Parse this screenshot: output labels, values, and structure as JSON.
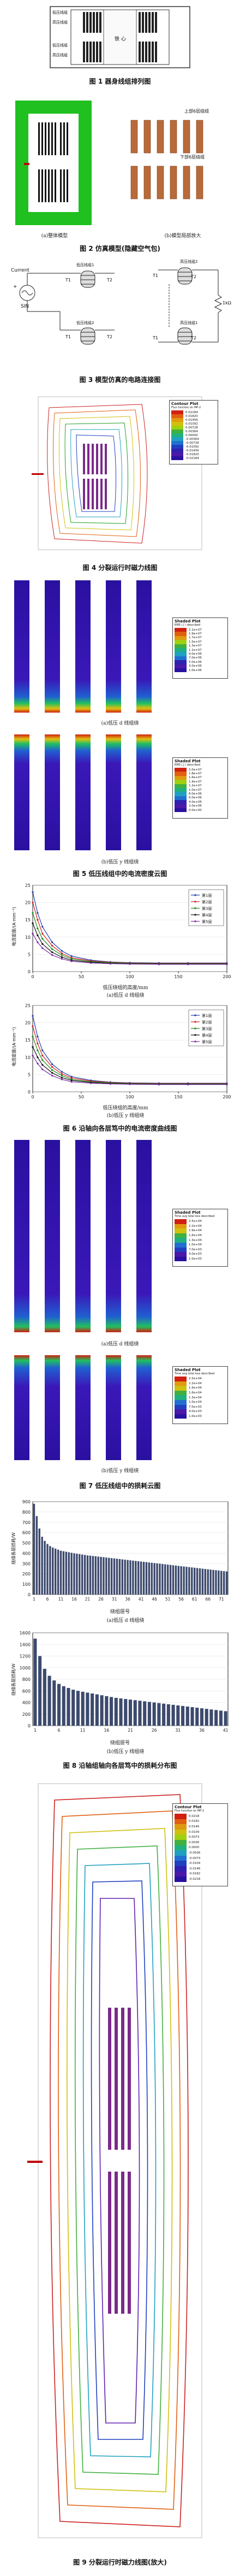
{
  "fig1": {
    "caption": "图 1  器身线组排列图",
    "core_label": "铁 心",
    "labels": [
      "低压线组",
      "高压线组",
      "低压线组",
      "高压线组"
    ]
  },
  "fig2": {
    "caption": "图 2  仿真模型(隐藏空气包)",
    "sub_a": "(a)整体模型",
    "sub_b": "(b)模型局部放大",
    "top_label": "上部6层绕组",
    "bottom_label": "下部6层绕组"
  },
  "fig3": {
    "caption": "图 3  模型仿真的电路连接图",
    "left": {
      "current": "Current",
      "sin": "SIN",
      "t1": "T1",
      "t2": "T2",
      "lv1": "低压线组1",
      "lv2": "低压线组2",
      "plus": "+"
    },
    "right": {
      "hv1": "高压线组1",
      "hv2": "高压线组2",
      "t1": "T1",
      "t2": "T2",
      "r": "1kΩ"
    }
  },
  "fig4": {
    "caption": "图 4  分裂运行时磁力线图",
    "legend_title": "Contour Plot",
    "legend_sub": "Flux function on MP-2",
    "levels": [
      "0.02184",
      "0.01820",
      "0.01456",
      "0.01092",
      "0.00728",
      "0.00364",
      "0.00000",
      "-0.00364",
      "-0.00728",
      "-0.01092",
      "-0.01456",
      "-0.01820",
      "-0.02184"
    ]
  },
  "fig5": {
    "caption": "图 5  低压线组中的电流密度云图",
    "sub_a": "(a)低压 d 线组绕",
    "sub_b": "(b)低压 y 线组绕",
    "legend_a_title": "Shaded Plot",
    "legend_a_sub": "RMS ( J ) described",
    "legend_b_title": "Shaded Plot",
    "legend_b_sub": "RMS ( J ) described",
    "levels_a": [
      "2.1e+07",
      "1.9e+07",
      "1.7e+07",
      "1.5e+07",
      "1.3e+07",
      "1.1e+07",
      "9.0e+06",
      "7.0e+06",
      "5.0e+06",
      "3.0e+06",
      "1.0e+06"
    ],
    "levels_b": [
      "2.0e+07",
      "1.8e+07",
      "1.6e+07",
      "1.4e+07",
      "1.2e+07",
      "1.0e+07",
      "8.0e+06",
      "6.0e+06",
      "4.0e+06",
      "2.0e+06",
      "0.0e+00"
    ]
  },
  "fig6": {
    "caption": "图 6  沿轴向各层笃中的电流密度曲线图",
    "sub_a": "(a)低压 d 线组绕",
    "sub_b": "(b)低压 y 线组绕",
    "xlabel": "低压绕组的高度/mm",
    "ylabel": "电流密度/(A·mm⁻²)",
    "ylabel_b": "电流密度/(A·mm⁻²)"
  },
  "fig7": {
    "caption": "图 7  低压线组中的损耗云图",
    "sub_a": "(a)低压 d 线组绕",
    "sub_b": "(b)低压 y 线组绕",
    "legend_a_title": "Shaded Plot",
    "legend_a_sub": "Time avg total loss described",
    "legend_b_title": "Shaded Plot",
    "legend_b_sub": "Time avg total loss described",
    "levels": [
      "2.5e+04",
      "2.2e+04",
      "1.9e+04",
      "1.6e+04",
      "1.3e+04",
      "1.0e+04",
      "7.0e+03",
      "4.0e+03",
      "1.0e+03"
    ]
  },
  "fig8": {
    "caption": "图 8  沿轴组轴向各层笃中的损耗分布图",
    "sub_a": "(a)低压 d 线组绕",
    "sub_b": "(b)低压 y 线组绕",
    "xlabel": "绕组层号",
    "ylabel": "绕组各层损耗/W",
    "ylabel_b": "绕组各层损耗/W"
  },
  "fig9": {
    "caption": "图 9  分裂运行时磁力线图(放大)",
    "legend_title": "Contour Plot",
    "legend_sub": "Flux function on MP-2",
    "levels": [
      "0.0218",
      "0.0182",
      "0.0146",
      "0.0109",
      "0.0073",
      "0.0036",
      "0.0000",
      "-0.0036",
      "-0.0073",
      "-0.0109",
      "-0.0146",
      "-0.0182",
      "-0.0218"
    ]
  },
  "chart_data": [
    {
      "type": "line",
      "title": "",
      "xlabel": "低压绕组的高度/mm",
      "ylabel": "电流密度/(A·mm⁻²)",
      "xlim": [
        0,
        200
      ],
      "ylim": [
        0,
        25
      ],
      "xticks": [
        0,
        50,
        100,
        150,
        200
      ],
      "yticks": [
        0,
        5,
        10,
        15,
        20,
        25
      ],
      "legend": "top-right",
      "series": [
        {
          "name": "第1层",
          "color": "#1f3fb0",
          "x": [
            0,
            5,
            10,
            20,
            30,
            40,
            60,
            80,
            100,
            130,
            160,
            200
          ],
          "y": [
            23,
            17,
            13,
            8.5,
            6,
            4.5,
            3.3,
            2.8,
            2.6,
            2.5,
            2.5,
            2.5
          ]
        },
        {
          "name": "第2层",
          "color": "#d42020",
          "x": [
            0,
            5,
            10,
            20,
            30,
            40,
            60,
            80,
            100,
            130,
            160,
            200
          ],
          "y": [
            20,
            15,
            11,
            7.5,
            5.3,
            4,
            3.1,
            2.7,
            2.5,
            2.4,
            2.4,
            2.4
          ]
        },
        {
          "name": "第3层",
          "color": "#1a8a1a",
          "x": [
            0,
            5,
            10,
            20,
            30,
            40,
            60,
            80,
            100,
            130,
            160,
            200
          ],
          "y": [
            17,
            12.5,
            9.5,
            6.5,
            4.8,
            3.7,
            2.9,
            2.6,
            2.4,
            2.3,
            2.3,
            2.3
          ]
        },
        {
          "name": "第4层",
          "color": "#111111",
          "x": [
            0,
            5,
            10,
            20,
            30,
            40,
            60,
            80,
            100,
            130,
            160,
            200
          ],
          "y": [
            14,
            10.5,
            8,
            5.6,
            4.2,
            3.3,
            2.7,
            2.4,
            2.3,
            2.2,
            2.2,
            2.2
          ]
        },
        {
          "name": "第5层",
          "color": "#7a2aa0",
          "x": [
            0,
            5,
            10,
            20,
            30,
            40,
            60,
            80,
            100,
            130,
            160,
            200
          ],
          "y": [
            11,
            8.5,
            6.8,
            4.8,
            3.7,
            3,
            2.5,
            2.3,
            2.2,
            2.1,
            2.1,
            2.1
          ]
        }
      ]
    },
    {
      "type": "line",
      "title": "",
      "xlabel": "低压绕组的高度/mm",
      "ylabel": "电流密度/(A·mm⁻²)",
      "xlim": [
        0,
        200
      ],
      "ylim": [
        0,
        25
      ],
      "xticks": [
        0,
        50,
        100,
        150,
        200
      ],
      "yticks": [
        0,
        5,
        10,
        15,
        20,
        25
      ],
      "legend": "top-right",
      "series": [
        {
          "name": "第1层",
          "color": "#1f3fb0",
          "x": [
            0,
            5,
            10,
            20,
            30,
            40,
            60,
            80,
            100,
            130,
            160,
            200
          ],
          "y": [
            22,
            16,
            12,
            8,
            5.8,
            4.4,
            3.3,
            2.8,
            2.6,
            2.5,
            2.5,
            2.5
          ]
        },
        {
          "name": "第2层",
          "color": "#d42020",
          "x": [
            0,
            5,
            10,
            20,
            30,
            40,
            60,
            80,
            100,
            130,
            160,
            200
          ],
          "y": [
            19,
            14,
            10.5,
            7.2,
            5.2,
            4,
            3.1,
            2.7,
            2.5,
            2.4,
            2.4,
            2.4
          ]
        },
        {
          "name": "第3层",
          "color": "#1a8a1a",
          "x": [
            0,
            5,
            10,
            20,
            30,
            40,
            60,
            80,
            100,
            130,
            160,
            200
          ],
          "y": [
            16,
            12,
            9.2,
            6.3,
            4.7,
            3.6,
            2.9,
            2.6,
            2.4,
            2.3,
            2.3,
            2.3
          ]
        },
        {
          "name": "第4层",
          "color": "#111111",
          "x": [
            0,
            5,
            10,
            20,
            30,
            40,
            60,
            80,
            100,
            130,
            160,
            200
          ],
          "y": [
            13,
            10,
            7.8,
            5.5,
            4.1,
            3.3,
            2.7,
            2.4,
            2.3,
            2.2,
            2.2,
            2.2
          ]
        },
        {
          "name": "第5层",
          "color": "#7a2aa0",
          "x": [
            0,
            5,
            10,
            20,
            30,
            40,
            60,
            80,
            100,
            130,
            160,
            200
          ],
          "y": [
            10.5,
            8.2,
            6.5,
            4.7,
            3.6,
            2.9,
            2.5,
            2.3,
            2.2,
            2.1,
            2.1,
            2.1
          ]
        }
      ]
    },
    {
      "type": "bar",
      "title": "",
      "xlabel": "绕组层号",
      "ylabel": "绕组各层损耗/W",
      "ylim": [
        0,
        900
      ],
      "yticks": [
        0,
        100,
        200,
        300,
        400,
        500,
        600,
        700,
        800,
        900
      ],
      "xticks": [
        "1",
        "6",
        "11",
        "16",
        "21",
        "26",
        "31",
        "36",
        "41",
        "46",
        "51",
        "56",
        "61",
        "66",
        "71"
      ],
      "values": [
        880,
        760,
        640,
        560,
        520,
        490,
        470,
        455,
        445,
        435,
        425,
        420,
        415,
        410,
        405,
        400,
        396,
        392,
        388,
        384,
        380,
        377,
        374,
        371,
        368,
        365,
        362,
        359,
        356,
        353,
        350,
        347,
        344,
        341,
        338,
        335,
        332,
        329,
        326,
        323,
        320,
        317,
        314,
        311,
        308,
        305,
        302,
        299,
        296,
        293,
        290,
        287,
        284,
        281,
        278,
        275,
        272,
        269,
        266,
        263,
        260,
        257,
        254,
        251,
        248,
        245,
        242,
        239,
        236,
        233,
        230,
        227,
        224
      ],
      "color": "#3d4a6e"
    },
    {
      "type": "bar",
      "title": "",
      "xlabel": "绕组层号",
      "ylabel": "绕组各层损耗/W",
      "ylim": [
        0,
        1600
      ],
      "yticks": [
        0,
        200,
        400,
        600,
        800,
        1000,
        1200,
        1400,
        1600
      ],
      "xticks": [
        "1",
        "6",
        "11",
        "16",
        "21",
        "26",
        "31",
        "36",
        "41"
      ],
      "values": [
        1500,
        1200,
        980,
        860,
        780,
        720,
        680,
        650,
        620,
        600,
        585,
        570,
        555,
        540,
        525,
        510,
        495,
        480,
        470,
        460,
        450,
        440,
        430,
        420,
        410,
        400,
        390,
        380,
        370,
        360,
        350,
        340,
        330,
        320,
        310,
        300,
        290,
        280,
        270,
        260,
        250
      ],
      "color": "#3d4a6e"
    }
  ]
}
